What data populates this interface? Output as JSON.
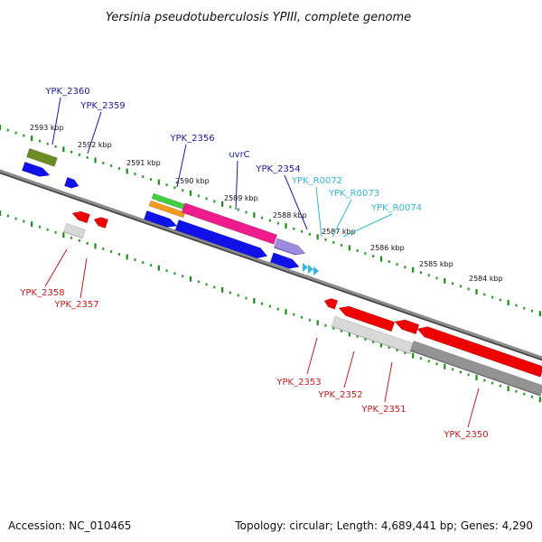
{
  "title": "Yersinia pseudotuberculosis YPIII, complete genome",
  "footer": {
    "accession": "Accession: NC_010465",
    "summary": "Topology: circular; Length: 4,689,441 bp; Genes: 4,290"
  },
  "colors": {
    "backbone": "#777777",
    "ruler": "#2e9e2e",
    "label_forward": "#1a1aa6",
    "label_rna": "#33b7d6",
    "label_reverse": "#cc1a1a",
    "gene_blue": "#1010e8",
    "gene_red": "#ee0000",
    "gene_olive": "#6b8c23",
    "gene_magenta": "#ee1c8c",
    "gene_green": "#3fcf3f",
    "gene_orange": "#f39a1e",
    "gene_purple": "#7a5fd0",
    "gene_light_gray": "#c9c9c9",
    "gene_dark_gray": "#6a6a6a",
    "rna_cyan": "#36b6ea"
  },
  "ruler": {
    "ticks": [
      "2593 kbp",
      "2592 kbp",
      "2591 kbp",
      "2590 kbp",
      "2589 kbp",
      "2588 kbp",
      "2587 kbp",
      "2586 kbp",
      "2585 kbp",
      "2584 kbp"
    ]
  },
  "labels": {
    "forward": [
      "YPK_2360",
      "YPK_2359",
      "YPK_2356",
      "uvrC",
      "YPK_2354"
    ],
    "rna": [
      "YPK_R0072",
      "YPK_R0073",
      "YPK_R0074"
    ],
    "reverse": [
      "YPK_2358",
      "YPK_2357",
      "YPK_2353",
      "YPK_2352",
      "YPK_2351",
      "YPK_2350"
    ]
  }
}
